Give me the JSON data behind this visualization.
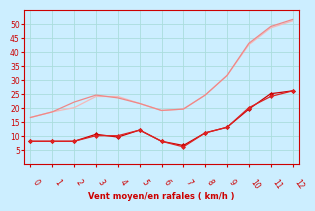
{
  "title": "",
  "xlabel": "Vent moyen/en rafales ( km/h )",
  "ylabel": "",
  "background_color": "#cceeff",
  "grid_color": "#aadddd",
  "x": [
    0,
    1,
    2,
    3,
    4,
    5,
    6,
    7,
    8,
    9,
    10,
    11,
    12
  ],
  "line1_y": [
    16.5,
    18.5,
    20.0,
    24.0,
    24.0,
    21.5,
    19.0,
    19.5,
    24.5,
    31.5,
    42.5,
    48.5,
    51.0
  ],
  "line2_y": [
    16.5,
    18.5,
    22.0,
    24.5,
    23.5,
    21.5,
    19.0,
    19.5,
    24.5,
    31.5,
    43.0,
    49.0,
    51.5
  ],
  "line3_y": [
    8.0,
    8.0,
    8.0,
    10.5,
    9.5,
    12.0,
    8.0,
    6.5,
    11.0,
    13.0,
    19.5,
    25.0,
    26.0
  ],
  "line4_y": [
    8.0,
    8.0,
    8.0,
    10.0,
    10.0,
    12.0,
    8.0,
    6.0,
    11.0,
    13.0,
    20.0,
    24.0,
    26.0
  ],
  "ylim": [
    0,
    55
  ],
  "xlim": [
    -0.3,
    12.3
  ],
  "yticks": [
    5,
    10,
    15,
    20,
    25,
    30,
    35,
    40,
    45,
    50
  ],
  "xticks": [
    0,
    1,
    2,
    3,
    4,
    5,
    6,
    7,
    8,
    9,
    10,
    11,
    12
  ],
  "line1_color": "#f5b8b8",
  "line2_color": "#ee8888",
  "line3_color": "#cc0000",
  "line4_color": "#dd2222",
  "marker_color3": "#cc0000",
  "marker_color4": "#dd2222",
  "axis_color": "#cc0000",
  "tick_label_color": "#cc0000",
  "xlabel_color": "#cc0000"
}
